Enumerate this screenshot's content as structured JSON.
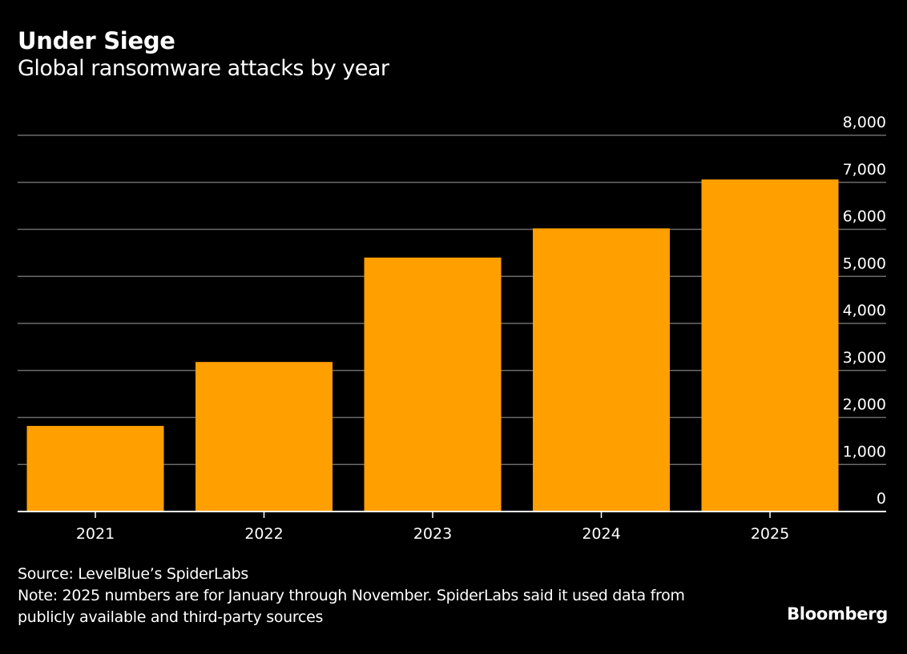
{
  "chart_data": {
    "type": "bar",
    "title": "Under Siege",
    "subtitle": "Global ransomware attacks by year",
    "categories": [
      "2021",
      "2022",
      "2023",
      "2024",
      "2025"
    ],
    "values": [
      1820,
      3180,
      5400,
      6020,
      7060
    ],
    "xlabel": "",
    "ylabel": "",
    "ylim": [
      0,
      8000
    ],
    "yticks": [
      0,
      1000,
      2000,
      3000,
      4000,
      5000,
      6000,
      7000,
      8000
    ],
    "ytick_labels": [
      "0",
      "1,000",
      "2,000",
      "3,000",
      "4,000",
      "5,000",
      "6,000",
      "7,000",
      "8,000"
    ],
    "y_axis_position": "right",
    "grid": true,
    "bar_color": "#FF9F00",
    "gridline_color": "#6b6b6b",
    "background_color": "#000000"
  },
  "footer": {
    "source": "Source: LevelBlue’s SpiderLabs",
    "note_line1": "Note: 2025 numbers are for January through November. SpiderLabs said it used data from",
    "note_line2": "publicly available and third-party sources"
  },
  "brand": "Bloomberg"
}
